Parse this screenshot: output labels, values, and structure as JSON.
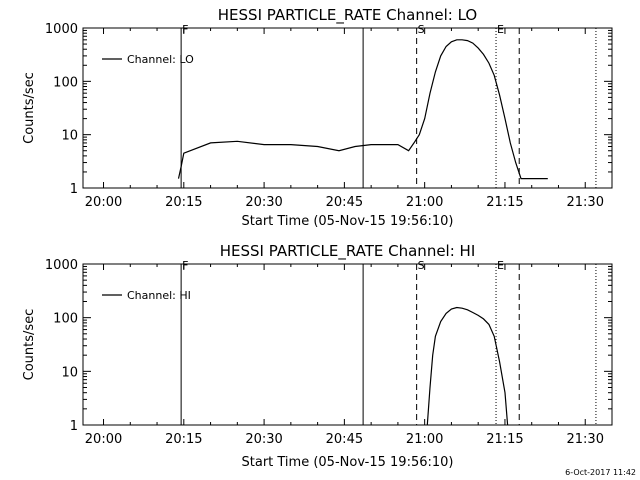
{
  "stamp": "6-Oct-2017 11:42",
  "chart_data": [
    {
      "type": "line",
      "title": "HESSI PARTICLE_RATE Channel: LO",
      "xlabel": "Start Time (05-Nov-15 19:56:10)",
      "ylabel": "Counts/sec",
      "yscale": "log",
      "ylim": [
        1,
        1000
      ],
      "xlim": [
        "19:56:10",
        "21:35:00"
      ],
      "x_ticks": [
        "20:00",
        "20:15",
        "20:30",
        "20:45",
        "21:00",
        "21:15",
        "21:30"
      ],
      "y_ticks": [
        "1",
        "10",
        "100",
        "1000"
      ],
      "legend": {
        "position": "top-left",
        "entries": [
          "Channel: LO"
        ]
      },
      "grid": false,
      "series": [
        {
          "name": "Channel: LO",
          "x": [
            "20:14:00",
            "20:14:30",
            "20:15:00",
            "20:20:00",
            "20:25:00",
            "20:30:00",
            "20:35:00",
            "20:40:00",
            "20:44:00",
            "20:47:00",
            "20:50:00",
            "20:55:00",
            "20:57:00",
            "20:58:00",
            "20:59:00",
            "21:00:00",
            "21:01:00",
            "21:02:00",
            "21:03:00",
            "21:04:00",
            "21:05:00",
            "21:06:00",
            "21:07:00",
            "21:08:00",
            "21:09:00",
            "21:10:00",
            "21:11:00",
            "21:12:00",
            "21:13:00",
            "21:14:00",
            "21:15:00",
            "21:16:00",
            "21:17:00",
            "21:18:00",
            "21:19:00",
            "21:20:00",
            "21:23:00"
          ],
          "y": [
            1.5,
            2.5,
            4.5,
            7,
            7.5,
            6.5,
            6.5,
            6,
            5,
            6,
            6.5,
            6.5,
            5,
            7,
            10,
            20,
            60,
            150,
            300,
            450,
            550,
            600,
            600,
            580,
            520,
            420,
            320,
            220,
            130,
            55,
            20,
            7,
            3,
            1.5,
            1.5,
            1.5,
            1.5
          ]
        }
      ],
      "annotations": [
        {
          "label": "F",
          "x": "20:14:30",
          "style": "solid"
        },
        {
          "label": "",
          "x": "20:48:30",
          "style": "solid"
        },
        {
          "label": "S",
          "x": "20:58:30",
          "style": "dashed"
        },
        {
          "label": "E",
          "x": "21:13:20",
          "style": "dotted"
        },
        {
          "label": "",
          "x": "21:17:40",
          "style": "dashed"
        },
        {
          "label": "",
          "x": "21:32:00",
          "style": "dotted"
        }
      ]
    },
    {
      "type": "line",
      "title": "HESSI PARTICLE_RATE Channel: HI",
      "xlabel": "Start Time (05-Nov-15 19:56:10)",
      "ylabel": "Counts/sec",
      "yscale": "log",
      "ylim": [
        1,
        1000
      ],
      "xlim": [
        "19:56:10",
        "21:35:00"
      ],
      "x_ticks": [
        "20:00",
        "20:15",
        "20:30",
        "20:45",
        "21:00",
        "21:15",
        "21:30"
      ],
      "y_ticks": [
        "1",
        "10",
        "100",
        "1000"
      ],
      "legend": {
        "position": "top-left",
        "entries": [
          "Channel: HI"
        ]
      },
      "grid": false,
      "series": [
        {
          "name": "Channel: HI",
          "x": [
            "21:00:30",
            "21:01:00",
            "21:01:30",
            "21:02:00",
            "21:03:00",
            "21:04:00",
            "21:05:00",
            "21:06:00",
            "21:07:00",
            "21:08:00",
            "21:09:00",
            "21:10:00",
            "21:11:00",
            "21:12:00",
            "21:13:00",
            "21:14:00",
            "21:15:00",
            "21:15:30"
          ],
          "y": [
            1,
            5,
            20,
            45,
            85,
            120,
            145,
            155,
            150,
            140,
            125,
            110,
            95,
            75,
            45,
            15,
            4,
            1
          ]
        }
      ],
      "annotations": [
        {
          "label": "F",
          "x": "20:14:30",
          "style": "solid"
        },
        {
          "label": "",
          "x": "20:48:30",
          "style": "solid"
        },
        {
          "label": "S",
          "x": "20:58:30",
          "style": "dashed"
        },
        {
          "label": "E",
          "x": "21:13:20",
          "style": "dotted"
        },
        {
          "label": "",
          "x": "21:17:40",
          "style": "dashed"
        },
        {
          "label": "",
          "x": "21:32:00",
          "style": "dotted"
        }
      ]
    }
  ]
}
